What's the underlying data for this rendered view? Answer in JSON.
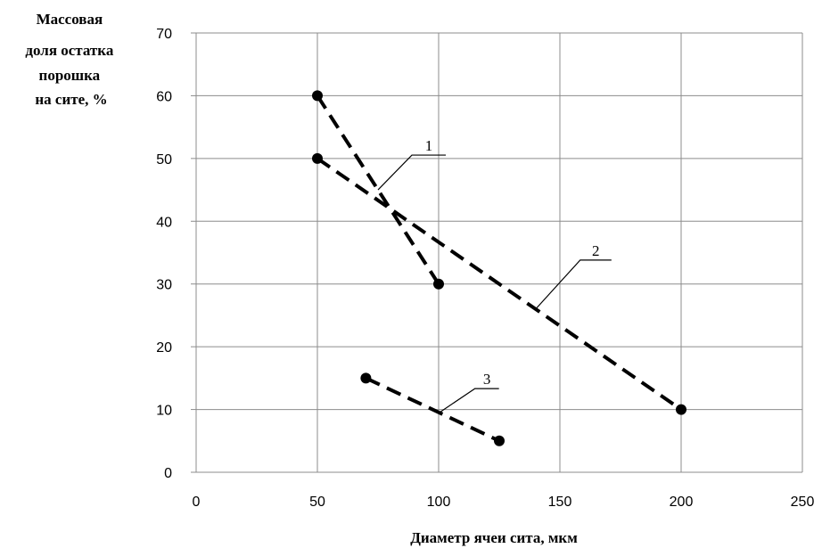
{
  "chart_data": {
    "type": "line",
    "title": "",
    "xlabel": "Диаметр ячеи сита, мкм",
    "ylabel_lines": [
      "Массовая",
      "доля остатка",
      "порошка",
      "на сите, %"
    ],
    "xlim": [
      0,
      250
    ],
    "ylim": [
      0,
      70
    ],
    "xticks": [
      0,
      50,
      100,
      150,
      200,
      250
    ],
    "yticks": [
      0,
      10,
      20,
      30,
      40,
      50,
      60,
      70
    ],
    "grid": true,
    "legend": "none",
    "line_style": "dashed",
    "line_color": "#000000",
    "series": [
      {
        "label": "1",
        "x": [
          50,
          100
        ],
        "y": [
          60,
          30
        ]
      },
      {
        "label": "2",
        "x": [
          50,
          200
        ],
        "y": [
          50,
          10
        ]
      },
      {
        "label": "3",
        "x": [
          70,
          125
        ],
        "y": [
          15,
          5
        ]
      }
    ]
  }
}
